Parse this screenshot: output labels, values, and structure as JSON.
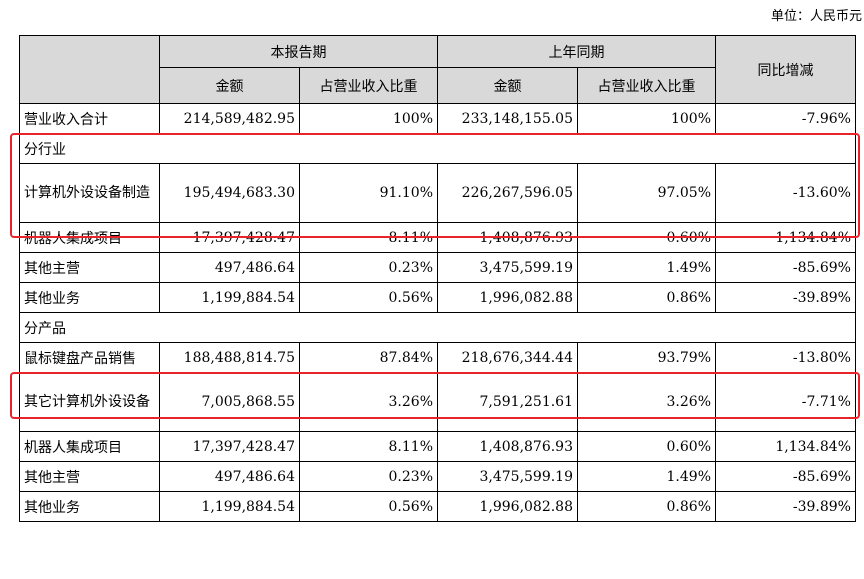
{
  "unit_label": "单位：人民币元",
  "header": {
    "current_period": "本报告期",
    "prior_period": "上年同期",
    "yoy_change": "同比增减",
    "amount": "金额",
    "revenue_share": "占营业收入比重"
  },
  "total_row": {
    "label": "营业收入合计",
    "cur_amount": "214,589,482.95",
    "cur_share": "100%",
    "prev_amount": "233,148,155.05",
    "prev_share": "100%",
    "yoy": "-7.96%"
  },
  "industry_section": {
    "title": "分行业",
    "rows": [
      {
        "label": "计算机外设设备制造",
        "cur_amount": "195,494,683.30",
        "cur_share": "91.10%",
        "prev_amount": "226,267,596.05",
        "prev_share": "97.05%",
        "yoy": "-13.60%"
      },
      {
        "label": "机器人集成项目",
        "cur_amount": "17,397,428.47",
        "cur_share": "8.11%",
        "prev_amount": "1,408,876.93",
        "prev_share": "0.60%",
        "yoy": "1,134.84%"
      },
      {
        "label": "其他主营",
        "cur_amount": "497,486.64",
        "cur_share": "0.23%",
        "prev_amount": "3,475,599.19",
        "prev_share": "1.49%",
        "yoy": "-85.69%"
      },
      {
        "label": "其他业务",
        "cur_amount": "1,199,884.54",
        "cur_share": "0.56%",
        "prev_amount": "1,996,082.88",
        "prev_share": "0.86%",
        "yoy": "-39.89%"
      }
    ]
  },
  "product_section": {
    "title": "分产品",
    "rows": [
      {
        "label": "鼠标键盘产品销售",
        "cur_amount": "188,488,814.75",
        "cur_share": "87.84%",
        "prev_amount": "218,676,344.44",
        "prev_share": "93.79%",
        "yoy": "-13.80%"
      },
      {
        "label": "其它计算机外设设备",
        "cur_amount": "7,005,868.55",
        "cur_share": "3.26%",
        "prev_amount": "7,591,251.61",
        "prev_share": "3.26%",
        "yoy": "-7.71%"
      },
      {
        "label": "机器人集成项目",
        "cur_amount": "17,397,428.47",
        "cur_share": "8.11%",
        "prev_amount": "1,408,876.93",
        "prev_share": "0.60%",
        "yoy": "1,134.84%"
      },
      {
        "label": "其他主营",
        "cur_amount": "497,486.64",
        "cur_share": "0.23%",
        "prev_amount": "3,475,599.19",
        "prev_share": "1.49%",
        "yoy": "-85.69%"
      },
      {
        "label": "其他业务",
        "cur_amount": "1,199,884.54",
        "cur_share": "0.56%",
        "prev_amount": "1,996,082.88",
        "prev_share": "0.86%",
        "yoy": "-39.89%"
      }
    ]
  },
  "highlight_color": "#e8242a",
  "header_bg": "#d9d9d9"
}
